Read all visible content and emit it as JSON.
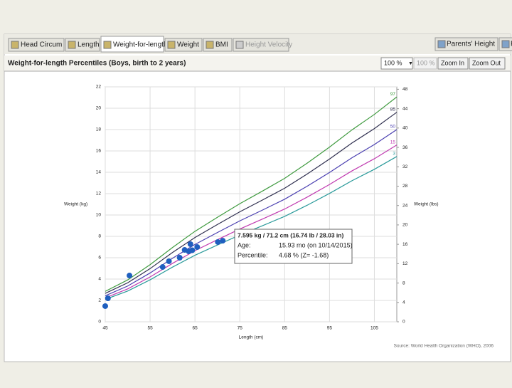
{
  "tabs": [
    "Head Circum",
    "Length",
    "Weight-for-length",
    "Weight",
    "BMI",
    "Height Velocity"
  ],
  "right_tabs": [
    "Parents' Height",
    "P"
  ],
  "chart_title": "Weight-for-length Percentiles (Boys, birth to 2 years)",
  "controls": {
    "zoom_select": "100 %",
    "zoom_level": "100 %",
    "zoom_in": "Zoom In",
    "zoom_out": "Zoom Out"
  },
  "tooltip": {
    "headline": "7.595 kg / 71.2 cm (16.74 lb / 28.03 in)",
    "age_label": "Age:",
    "age": "15.93 mo (on 10/14/2015)",
    "percentile_label": "Percentile:",
    "percentile": "4.68 % (Z= -1.68)"
  },
  "source": "Source: World Health Organization (WHO), 2006",
  "chart_data": {
    "type": "line",
    "x_label": "Length (cm)",
    "y_label": "Weight (kg)",
    "y2_label": "Weight (lbs)",
    "x": [
      45,
      50,
      55,
      60,
      65,
      70,
      75,
      80,
      85,
      90,
      95,
      100,
      105,
      110
    ],
    "series": [
      {
        "name": "97",
        "color": "#3f9a3f",
        "values": [
          2.85,
          3.92,
          5.35,
          6.96,
          8.47,
          9.78,
          11.06,
          12.23,
          13.43,
          14.85,
          16.36,
          17.97,
          19.42,
          21.06
        ]
      },
      {
        "name": "85",
        "color": "#2f2f4f",
        "values": [
          2.66,
          3.65,
          4.98,
          6.49,
          7.89,
          9.11,
          10.3,
          11.39,
          12.51,
          13.83,
          15.24,
          16.74,
          18.09,
          19.62
        ]
      },
      {
        "name": "50",
        "color": "#4a3fb0",
        "values": [
          2.44,
          3.35,
          4.57,
          5.95,
          7.24,
          8.36,
          9.45,
          10.45,
          11.48,
          12.69,
          13.98,
          15.36,
          16.6,
          18.0
        ]
      },
      {
        "name": "15",
        "color": "#c03ab0",
        "values": [
          2.24,
          3.08,
          4.2,
          5.47,
          6.66,
          7.69,
          8.69,
          9.61,
          10.56,
          11.67,
          12.86,
          14.13,
          15.27,
          16.56
        ]
      },
      {
        "name": "3",
        "color": "#2a9a9a",
        "values": [
          2.1,
          2.88,
          3.93,
          5.12,
          6.23,
          7.19,
          8.13,
          8.99,
          9.87,
          10.91,
          12.02,
          13.21,
          14.28,
          15.48
        ]
      }
    ],
    "patient": {
      "color": "#1f5fbf",
      "x": [
        45,
        45.6,
        50.4,
        57.8,
        59.2,
        61.6,
        62.7,
        64.0,
        63.6,
        64.4,
        65.5,
        70.1,
        71.2
      ],
      "values": [
        1.47,
        2.2,
        4.33,
        5.13,
        5.67,
        6.0,
        6.73,
        7.27,
        6.6,
        6.7,
        7.0,
        7.47,
        7.595
      ]
    },
    "xlim": [
      45,
      110
    ],
    "xticks": [
      45,
      55,
      65,
      75,
      85,
      95,
      105
    ],
    "ylim": [
      0,
      22
    ],
    "yticks": [
      0,
      2,
      4,
      6,
      8,
      10,
      12,
      14,
      16,
      18,
      20,
      22
    ],
    "y2lim": [
      0,
      48.5
    ],
    "y2ticks": [
      0,
      4,
      8,
      12,
      16,
      20,
      24,
      28,
      32,
      36,
      40,
      44,
      48
    ],
    "grid": true
  }
}
